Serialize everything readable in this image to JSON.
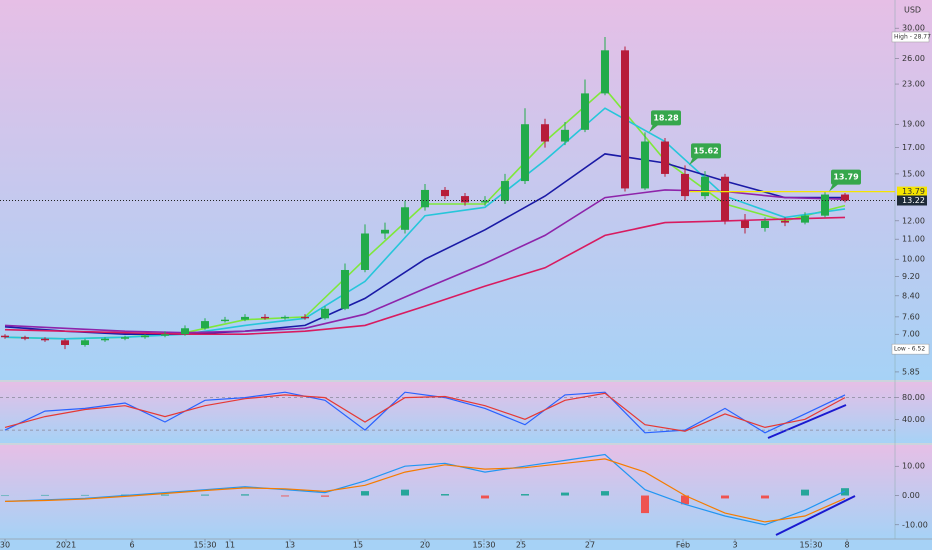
{
  "chart_data": [
    {
      "type": "candlestick",
      "currency": "USD",
      "log_scale": true,
      "ylim": [
        5.63,
        34.3
      ],
      "yticks": [
        {
          "value": 30,
          "label": "30.00"
        },
        {
          "value": 26,
          "label": "26.00"
        },
        {
          "value": 23,
          "label": "23.00"
        },
        {
          "value": 19,
          "label": "19.00"
        },
        {
          "value": 17,
          "label": "17.00"
        },
        {
          "value": 15,
          "label": "15.00"
        },
        {
          "value": 12,
          "label": "12.00"
        },
        {
          "value": 11,
          "label": "11.00"
        },
        {
          "value": 10,
          "label": "10.00"
        },
        {
          "value": 9.2,
          "label": "9.20"
        },
        {
          "value": 8.4,
          "label": "8.40"
        },
        {
          "value": 7.6,
          "label": "7.60"
        },
        {
          "value": 7,
          "label": "7.00"
        },
        {
          "value": 5.85,
          "label": "5.85"
        }
      ],
      "xlim": [
        -0.25,
        44.5
      ],
      "xticks": [
        {
          "value": 0,
          "label": "30"
        },
        {
          "value": 3.05,
          "label": "2021"
        },
        {
          "value": 6.35,
          "label": "6"
        },
        {
          "value": 10,
          "label": "15:30"
        },
        {
          "value": 11.25,
          "label": "11"
        },
        {
          "value": 14.25,
          "label": "13"
        },
        {
          "value": 17.65,
          "label": "15"
        },
        {
          "value": 21,
          "label": "20"
        },
        {
          "value": 23.95,
          "label": "15:30"
        },
        {
          "value": 25.8,
          "label": "25"
        },
        {
          "value": 29.25,
          "label": "27"
        },
        {
          "value": 33.9,
          "label": "Feb"
        },
        {
          "value": 36.5,
          "label": "3"
        },
        {
          "value": 40.3,
          "label": "15:30"
        },
        {
          "value": 42.1,
          "label": "8"
        }
      ],
      "up_color": "#22ab4a",
      "down_color": "#b71c3a",
      "candles": {
        "open": [
          6.95,
          6.9,
          6.85,
          6.8,
          6.65,
          6.8,
          6.85,
          6.9,
          6.95,
          7.0,
          7.2,
          7.45,
          7.5,
          7.6,
          7.55,
          7.6,
          7.55,
          7.9,
          9.5,
          11.3,
          11.5,
          12.8,
          13.9,
          13.5,
          13.1,
          13.2,
          14.5,
          19.0,
          17.5,
          18.5,
          22.0,
          27.0,
          14.0,
          17.5,
          15.0,
          13.5,
          14.8,
          12.0,
          11.6,
          12.0,
          11.9,
          12.3,
          13.6
        ],
        "high": [
          7.0,
          6.95,
          6.9,
          6.85,
          6.85,
          6.9,
          6.95,
          7.0,
          7.1,
          7.3,
          7.55,
          7.6,
          7.7,
          7.7,
          7.65,
          7.7,
          8.0,
          9.8,
          11.8,
          11.9,
          13.2,
          14.3,
          14.1,
          13.7,
          13.5,
          15.0,
          20.5,
          19.5,
          19.2,
          23.5,
          28.77,
          27.5,
          18.28,
          17.8,
          15.62,
          15.2,
          15.0,
          12.4,
          12.2,
          12.2,
          12.5,
          13.79,
          13.7
        ],
        "low": [
          6.85,
          6.8,
          6.75,
          6.52,
          6.6,
          6.75,
          6.8,
          6.85,
          6.9,
          6.95,
          7.15,
          7.4,
          7.45,
          7.5,
          7.5,
          7.5,
          7.5,
          7.85,
          9.4,
          11.0,
          11.3,
          12.6,
          13.3,
          12.9,
          12.9,
          13.0,
          14.3,
          17.0,
          17.2,
          18.3,
          21.8,
          13.8,
          13.9,
          14.8,
          13.2,
          13.3,
          11.8,
          11.3,
          11.4,
          11.7,
          11.8,
          12.2,
          13.1
        ],
        "close": [
          6.9,
          6.85,
          6.8,
          6.65,
          6.8,
          6.85,
          6.9,
          6.95,
          7.0,
          7.2,
          7.45,
          7.5,
          7.6,
          7.55,
          7.6,
          7.55,
          7.9,
          9.5,
          11.3,
          11.5,
          12.8,
          13.9,
          13.5,
          13.1,
          13.2,
          14.5,
          19.0,
          17.5,
          18.5,
          22.0,
          27.0,
          14.0,
          17.5,
          15.0,
          13.5,
          14.8,
          12.0,
          11.6,
          12.0,
          11.9,
          12.3,
          13.6,
          13.22
        ]
      },
      "overlays": {
        "x": [
          0,
          3,
          6,
          9,
          12,
          15,
          18,
          21,
          24,
          27,
          30,
          33,
          36,
          39,
          42
        ],
        "series": [
          {
            "color": "#7ee83a",
            "values": [
              6.9,
              6.85,
              6.9,
              7.05,
              7.5,
              7.6,
              10.0,
              13.0,
              13.0,
              17.5,
              22.5,
              16.0,
              13.0,
              12.0,
              12.9
            ]
          },
          {
            "color": "#26c6da",
            "values": [
              6.9,
              6.85,
              6.9,
              7.0,
              7.3,
              7.55,
              9.0,
              12.3,
              12.8,
              16.0,
              20.5,
              17.5,
              13.5,
              12.2,
              12.7
            ]
          },
          {
            "color": "#1a1aa6",
            "values": [
              7.25,
              7.1,
              7.0,
              7.0,
              7.1,
              7.3,
              8.3,
              10.0,
              11.5,
              13.5,
              16.5,
              15.8,
              14.5,
              13.4,
              13.4
            ]
          },
          {
            "color": "#8e24aa",
            "values": [
              7.3,
              7.2,
              7.1,
              7.05,
              7.1,
              7.2,
              7.7,
              8.7,
              9.8,
              11.2,
              13.4,
              13.9,
              13.8,
              13.4,
              13.3
            ]
          },
          {
            "color": "#d81b60",
            "values": [
              7.15,
              7.1,
              7.05,
              7.0,
              7.0,
              7.1,
              7.3,
              8.0,
              8.8,
              9.6,
              11.2,
              11.9,
              12.0,
              12.1,
              12.2
            ]
          }
        ]
      },
      "last_price": 13.22,
      "level": 13.79,
      "high_label": "High - 28.77",
      "low_label": "Low - 6.52",
      "high_value": 28.77,
      "low_value": 6.52,
      "callouts": [
        {
          "x": 32,
          "value": 18.28
        },
        {
          "x": 34,
          "value": 15.62
        },
        {
          "x": 41,
          "value": 13.79
        }
      ]
    },
    {
      "type": "line",
      "x": [
        0,
        2,
        4,
        6,
        8,
        10,
        12,
        14,
        16,
        18,
        20,
        22,
        24,
        26,
        28,
        30,
        32,
        34,
        36,
        38,
        40,
        42
      ],
      "series": [
        {
          "color": "#2962ff",
          "values": [
            20,
            55,
            60,
            70,
            35,
            75,
            80,
            90,
            75,
            20,
            90,
            80,
            60,
            30,
            85,
            90,
            15,
            20,
            60,
            15,
            50,
            85
          ]
        },
        {
          "color": "#e53935",
          "values": [
            25,
            45,
            58,
            65,
            45,
            65,
            78,
            85,
            80,
            35,
            80,
            82,
            65,
            40,
            75,
            88,
            30,
            18,
            50,
            25,
            40,
            80
          ]
        }
      ],
      "ylim": [
        -2,
        107
      ],
      "yticks": [
        {
          "value": 80,
          "label": "80.00"
        },
        {
          "value": 40,
          "label": "40.00"
        }
      ],
      "bands": [
        80,
        20
      ]
    },
    {
      "type": "macd",
      "x": [
        0,
        2,
        4,
        6,
        8,
        10,
        12,
        14,
        16,
        18,
        20,
        22,
        24,
        26,
        28,
        30,
        32,
        34,
        36,
        38,
        40,
        42
      ],
      "series": [
        {
          "color": "#2196f3",
          "values": [
            -2,
            -1.5,
            -1,
            0,
            1,
            2,
            3,
            2,
            1,
            5,
            10,
            11,
            8,
            10,
            12,
            14,
            2,
            -3,
            -7,
            -10,
            -5,
            1.5
          ]
        },
        {
          "color": "#f57c00",
          "values": [
            -2,
            -1.7,
            -1.2,
            -0.3,
            0.7,
            1.7,
            2.6,
            2.3,
            1.4,
            3.5,
            8,
            10.5,
            9,
            9.5,
            11,
            12.5,
            8,
            0,
            -6,
            -9,
            -7,
            -1
          ]
        }
      ],
      "histogram": {
        "values": [
          0,
          0.2,
          0.2,
          0.3,
          0.3,
          0.3,
          0.4,
          -0.3,
          -0.4,
          1.5,
          2,
          0.5,
          -1,
          0.5,
          1,
          1.5,
          -6,
          -3,
          -1,
          -1,
          2,
          2.5
        ],
        "positive_color": "#26a69a",
        "negative_color": "#ef5350"
      },
      "ylim": [
        -14.5,
        16.9
      ],
      "yticks": [
        {
          "value": 10,
          "label": "10.00"
        },
        {
          "value": 0,
          "label": "0.00"
        },
        {
          "value": -10,
          "label": "-10.00"
        }
      ]
    }
  ]
}
